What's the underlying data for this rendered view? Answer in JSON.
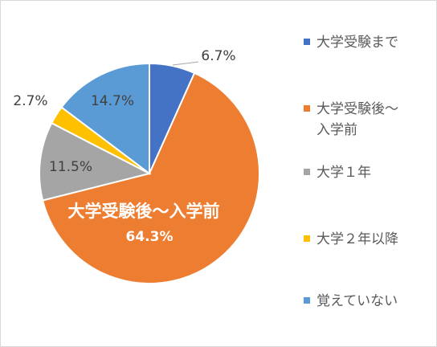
{
  "chart_data": {
    "type": "pie",
    "start_angle_deg": 0,
    "direction": "clockwise",
    "slices": [
      {
        "label": "大学受験まで",
        "value": 6.7,
        "display": "6.7%",
        "color": "#4472c4"
      },
      {
        "label": "大学受験後～入学前",
        "value": 64.3,
        "display": "64.3%",
        "color": "#ed7d31",
        "inner_label": "大学受験後～入学前"
      },
      {
        "label": "大学１年",
        "value": 11.5,
        "display": "11.5%",
        "color": "#a5a5a5"
      },
      {
        "label": "大学２年以降",
        "value": 2.7,
        "display": "2.7%",
        "color": "#ffc000"
      },
      {
        "label": "覚えていない",
        "value": 14.7,
        "display": "14.7%",
        "color": "#5b9bd5"
      }
    ],
    "legend": {
      "position": "right",
      "items": [
        "大学受験まで",
        "大学受験後～\n入学前",
        "大学１年",
        "大学２年以降",
        "覚えていない"
      ]
    }
  }
}
